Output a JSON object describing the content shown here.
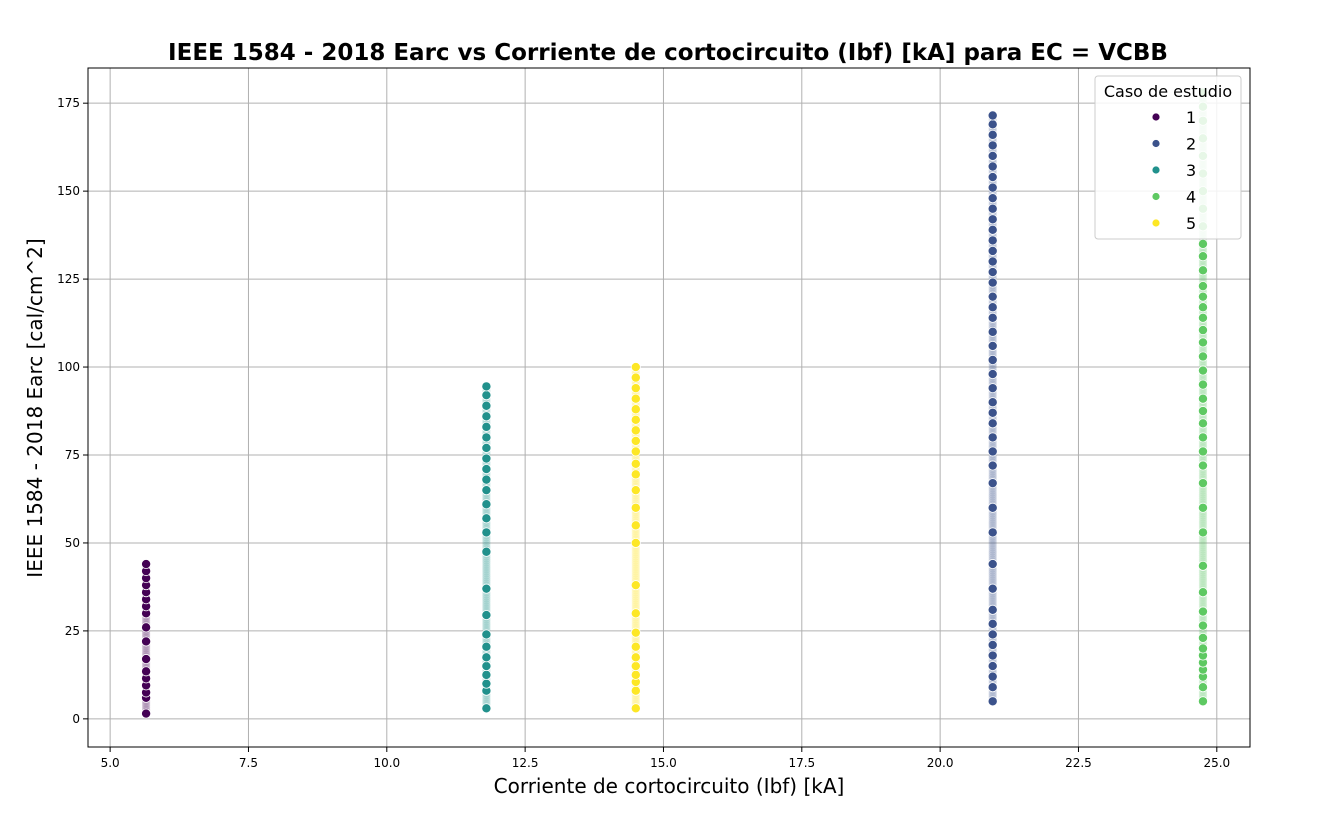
{
  "chart_data": {
    "type": "scatter",
    "title": "IEEE 1584 - 2018 Earc vs Corriente de cortocircuito (Ibf) [kA] para EC = VCBB",
    "xlabel": "Corriente de cortocircuito (Ibf) [kA]",
    "ylabel": "IEEE 1584 - 2018 Earc [cal/cm^2]",
    "xlim": [
      4.6,
      25.6
    ],
    "ylim": [
      -8,
      185
    ],
    "xticks": [
      5.0,
      7.5,
      10.0,
      12.5,
      15.0,
      17.5,
      20.0,
      22.5,
      25.0
    ],
    "xtick_labels": [
      "5.0",
      "7.5",
      "10.0",
      "12.5",
      "15.0",
      "17.5",
      "20.0",
      "22.5",
      "25.0"
    ],
    "yticks": [
      0,
      25,
      50,
      75,
      100,
      125,
      150,
      175
    ],
    "ytick_labels": [
      "0",
      "25",
      "50",
      "75",
      "100",
      "125",
      "150",
      "175"
    ],
    "grid": true,
    "legend": {
      "title": "Caso de estudio",
      "placement": "top-right"
    },
    "series": [
      {
        "name": "1",
        "color": "#440154",
        "x": 5.65,
        "y": [
          1.5,
          6.0,
          7.5,
          9.5,
          11.5,
          13.5,
          17.0,
          22.0,
          26.0,
          30.0,
          32.0,
          34.0,
          36.0,
          38.0,
          40.0,
          42.0,
          44.0
        ]
      },
      {
        "name": "2",
        "color": "#3b528b",
        "x": 20.95,
        "y": [
          5.0,
          9.0,
          12.0,
          15.0,
          18.0,
          21.0,
          24.0,
          27.0,
          31.0,
          37.0,
          44.0,
          53.0,
          60.0,
          67.0,
          72.0,
          76.0,
          80.0,
          84.0,
          87.0,
          90.0,
          94.0,
          98.0,
          102.0,
          106.0,
          110.0,
          114.0,
          117.0,
          120.0,
          124.0,
          127.0,
          130.0,
          133.0,
          136.0,
          139.0,
          142.0,
          145.0,
          148.0,
          151.0,
          154.0,
          157.0,
          160.0,
          163.0,
          166.0,
          169.0,
          171.5
        ]
      },
      {
        "name": "3",
        "color": "#21918c",
        "x": 11.8,
        "y": [
          3.0,
          8.0,
          10.0,
          12.5,
          15.0,
          17.5,
          20.5,
          24.0,
          29.5,
          37.0,
          47.5,
          53.0,
          57.0,
          61.0,
          65.0,
          68.0,
          71.0,
          74.0,
          77.0,
          80.0,
          83.0,
          86.0,
          89.0,
          92.0,
          94.5
        ]
      },
      {
        "name": "4",
        "color": "#5ec962",
        "x": 24.75,
        "y": [
          5.0,
          9.0,
          12.0,
          14.0,
          16.0,
          18.0,
          20.0,
          23.0,
          26.5,
          30.5,
          36.0,
          43.5,
          53.0,
          60.0,
          67.0,
          72.0,
          76.0,
          80.0,
          84.0,
          87.5,
          91.0,
          95.0,
          99.0,
          103.0,
          107.0,
          110.5,
          114.0,
          117.0,
          120.0,
          123.0,
          127.5,
          131.5,
          135.0,
          140.0,
          145.0,
          150.0,
          155.0,
          160.0,
          165.0,
          170.0,
          174.0,
          178.0
        ]
      },
      {
        "name": "5",
        "color": "#fde725",
        "x": 14.5,
        "y": [
          3.0,
          8.0,
          10.5,
          12.5,
          15.0,
          17.5,
          20.5,
          24.5,
          30.0,
          38.0,
          50.0,
          55.0,
          60.0,
          65.0,
          69.5,
          72.5,
          76.0,
          79.0,
          82.0,
          85.0,
          88.0,
          91.0,
          94.0,
          97.0,
          100.0
        ]
      }
    ]
  }
}
